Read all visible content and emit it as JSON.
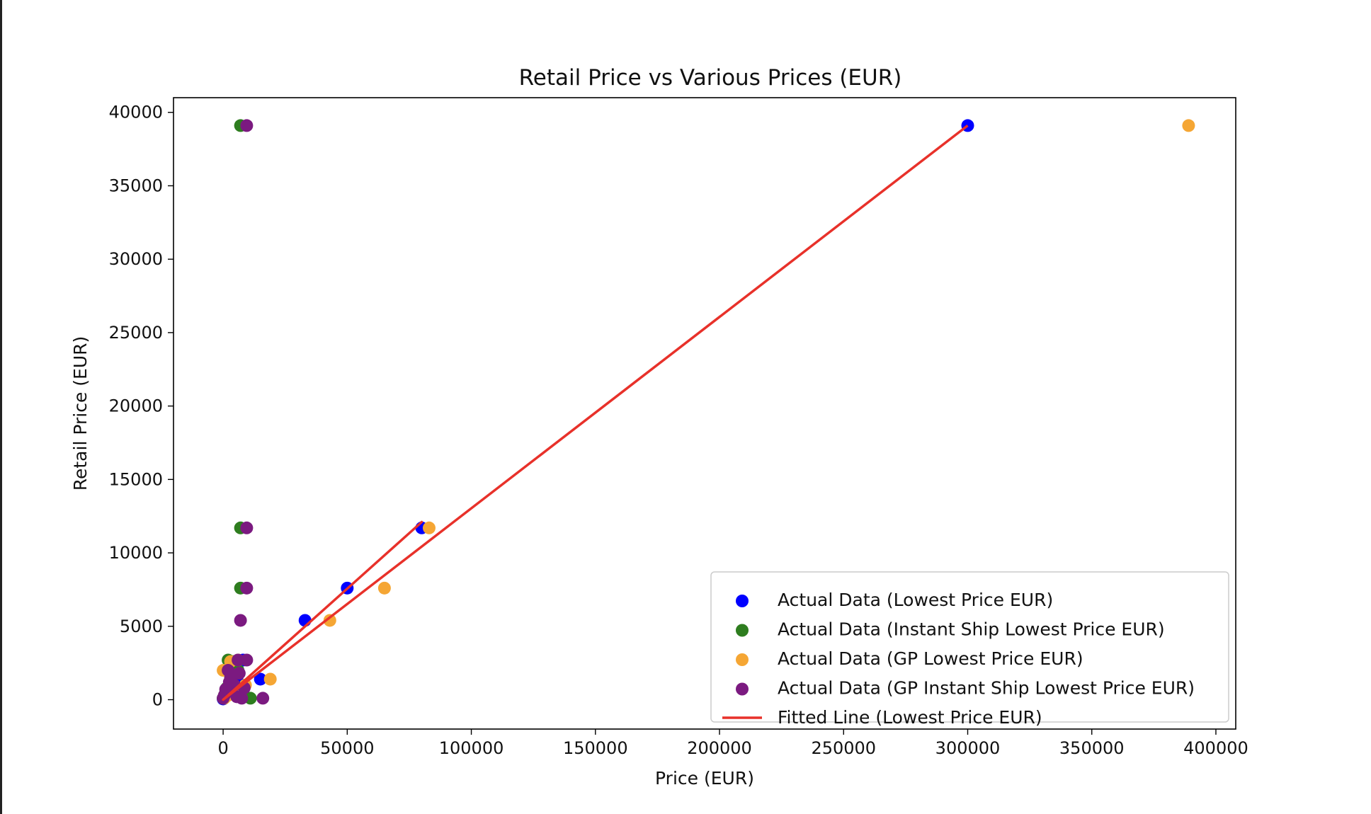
{
  "chart_data": {
    "type": "scatter",
    "title": "Retail Price vs Various Prices (EUR)",
    "xlabel": "Price (EUR)",
    "ylabel": "Retail Price (EUR)",
    "xlim": [
      -20000,
      408000
    ],
    "ylim": [
      -2000,
      41000
    ],
    "xticks": [
      0,
      50000,
      100000,
      150000,
      200000,
      250000,
      300000,
      350000,
      400000
    ],
    "yticks": [
      0,
      5000,
      10000,
      15000,
      20000,
      25000,
      30000,
      35000,
      40000
    ],
    "grid": false,
    "legend_position": "lower-right",
    "series": [
      {
        "name": "Actual Data (Lowest Price EUR)",
        "kind": "scatter",
        "color": "#0000ff",
        "points": [
          [
            300000,
            39100
          ],
          [
            80000,
            11700
          ],
          [
            50000,
            7600
          ],
          [
            33000,
            5400
          ],
          [
            15000,
            1400
          ],
          [
            8000,
            2700
          ],
          [
            5000,
            1800
          ],
          [
            3000,
            900
          ],
          [
            2000,
            500
          ],
          [
            1000,
            300
          ],
          [
            500,
            150
          ],
          [
            0,
            50
          ],
          [
            6000,
            1200
          ]
        ]
      },
      {
        "name": "Actual Data (Instant Ship Lowest Price EUR)",
        "kind": "scatter",
        "color": "#2e7d1f",
        "points": [
          [
            7000,
            39100
          ],
          [
            7000,
            11700
          ],
          [
            7000,
            7600
          ],
          [
            2000,
            2700
          ],
          [
            4000,
            2600
          ],
          [
            11000,
            100
          ],
          [
            3000,
            1500
          ],
          [
            1500,
            800
          ],
          [
            500,
            300
          ],
          [
            0,
            100
          ],
          [
            6000,
            2000
          ],
          [
            2500,
            400
          ]
        ]
      },
      {
        "name": "Actual Data (GP Lowest Price EUR)",
        "kind": "scatter",
        "color": "#f5a634",
        "points": [
          [
            389000,
            39100
          ],
          [
            83000,
            11700
          ],
          [
            65000,
            7600
          ],
          [
            43000,
            5400
          ],
          [
            19000,
            1400
          ],
          [
            0,
            2000
          ],
          [
            3000,
            2600
          ],
          [
            6000,
            2700
          ],
          [
            9000,
            1000
          ],
          [
            2000,
            300
          ],
          [
            500,
            100
          ],
          [
            4000,
            600
          ]
        ]
      },
      {
        "name": "Actual Data (GP Instant Ship Lowest Price EUR)",
        "kind": "scatter",
        "color": "#7b1a80",
        "points": [
          [
            9500,
            39100
          ],
          [
            9500,
            11700
          ],
          [
            9500,
            7600
          ],
          [
            7000,
            5400
          ],
          [
            16000,
            100
          ],
          [
            6000,
            2700
          ],
          [
            9500,
            2700
          ],
          [
            2000,
            2000
          ],
          [
            3000,
            1500
          ],
          [
            4500,
            1000
          ],
          [
            1000,
            700
          ],
          [
            500,
            300
          ],
          [
            0,
            100
          ],
          [
            5500,
            200
          ],
          [
            7500,
            100
          ],
          [
            8500,
            800
          ],
          [
            2500,
            1200
          ],
          [
            6500,
            1800
          ]
        ]
      },
      {
        "name": "Fitted Line (Lowest Price EUR)",
        "kind": "line",
        "color": "#e8312a",
        "points": [
          [
            0,
            0
          ],
          [
            80000,
            12100
          ],
          [
            0,
            0
          ],
          [
            300000,
            39100
          ]
        ]
      }
    ]
  }
}
